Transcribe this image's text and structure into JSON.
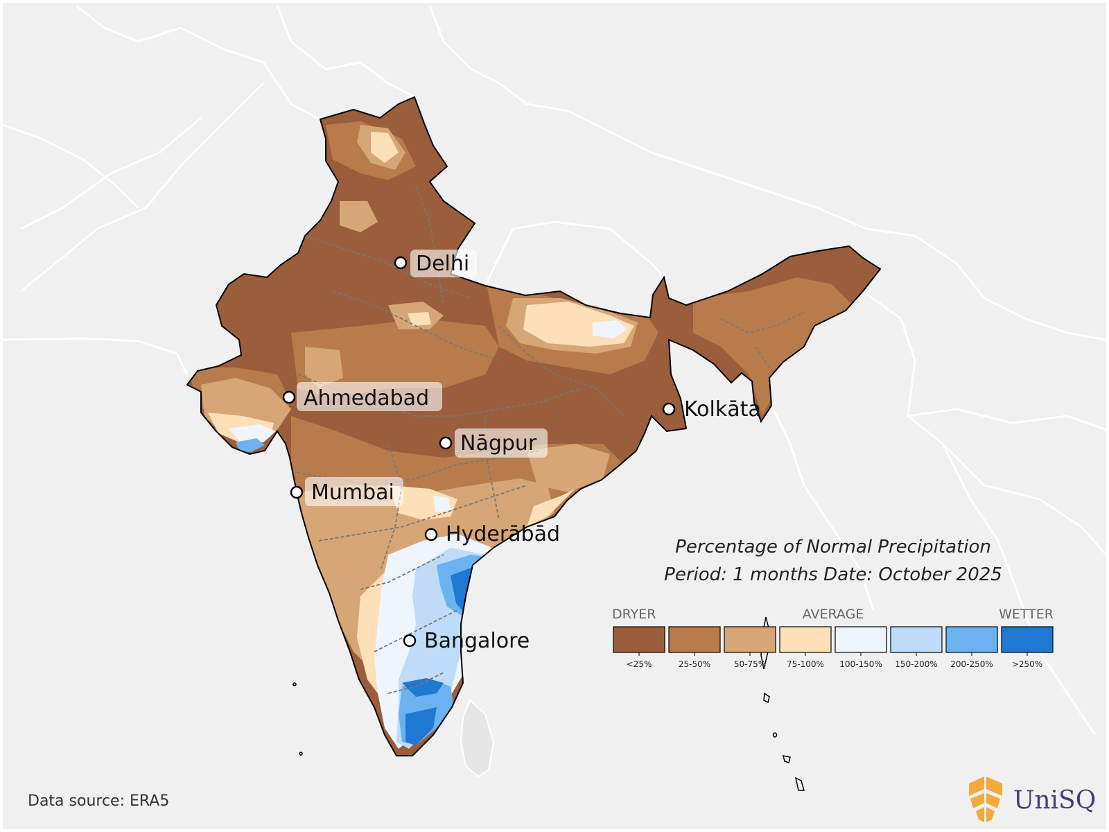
{
  "title": {
    "line1": "Percentage of Normal Precipitation",
    "line2": "Period: 1 months Date: October 2025"
  },
  "legend": {
    "left_label": "DRYER",
    "center_label": "AVERAGE",
    "right_label": "WETTER",
    "bins": [
      {
        "label": "<25%",
        "color": "#9a5e3c"
      },
      {
        "label": "25-50%",
        "color": "#b87b4b"
      },
      {
        "label": "50-75%",
        "color": "#d6a676"
      },
      {
        "label": "75-100%",
        "color": "#fde0b8"
      },
      {
        "label": "100-150%",
        "color": "#eef5fd"
      },
      {
        "label": "150-200%",
        "color": "#bedcf8"
      },
      {
        "label": "200-250%",
        "color": "#6ab2f0"
      },
      {
        "label": ">250%",
        "color": "#1f78d1"
      }
    ]
  },
  "cities": [
    {
      "name": "Delhi"
    },
    {
      "name": "Ahmedabad"
    },
    {
      "name": "Kolkāta"
    },
    {
      "name": "Nāgpur"
    },
    {
      "name": "Mumbai"
    },
    {
      "name": "Hyderābād"
    },
    {
      "name": "Bangalore"
    }
  ],
  "footer": {
    "source": "Data source: ERA5",
    "brand": "UniSQ"
  },
  "colors": {
    "background": "#f0f0f0",
    "land_outline": "#ffffff",
    "india_border": "#000000",
    "state_border": "#777777"
  }
}
